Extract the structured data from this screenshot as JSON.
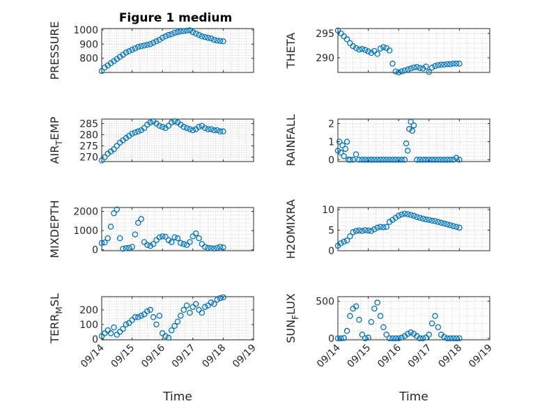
{
  "figure": {
    "title": "Figure 1 medium",
    "series_color": "#0072BD"
  },
  "chart_data": [
    {
      "type": "scatter",
      "name": "pressure",
      "ylabel": "PRESSURE",
      "ylim": [
        700,
        1010
      ],
      "yticks": [
        800,
        900,
        1000
      ],
      "xlabel": "",
      "xlim": [
        0,
        5
      ],
      "x": [
        0.0,
        0.1,
        0.2,
        0.3,
        0.4,
        0.5,
        0.6,
        0.7,
        0.8,
        0.9,
        1.0,
        1.1,
        1.2,
        1.3,
        1.4,
        1.5,
        1.6,
        1.7,
        1.8,
        1.9,
        2.0,
        2.1,
        2.2,
        2.3,
        2.4,
        2.5,
        2.6,
        2.7,
        2.8,
        2.9,
        3.0,
        3.1,
        3.2,
        3.3,
        3.4,
        3.5,
        3.6,
        3.7,
        3.8,
        3.9,
        4.0
      ],
      "y": [
        710,
        735,
        750,
        765,
        780,
        795,
        810,
        825,
        840,
        850,
        860,
        870,
        880,
        885,
        890,
        895,
        900,
        910,
        920,
        930,
        945,
        955,
        965,
        970,
        980,
        985,
        990,
        992,
        995,
        998,
        985,
        975,
        965,
        955,
        950,
        945,
        940,
        930,
        925,
        922,
        920
      ]
    },
    {
      "type": "scatter",
      "name": "theta",
      "ylabel": "THETA",
      "ylim": [
        287,
        296
      ],
      "yticks": [
        290,
        295
      ],
      "xlabel": "",
      "xlim": [
        0,
        5
      ],
      "x": [
        0.0,
        0.1,
        0.2,
        0.3,
        0.4,
        0.5,
        0.6,
        0.7,
        0.8,
        0.9,
        1.0,
        1.1,
        1.2,
        1.3,
        1.4,
        1.5,
        1.6,
        1.7,
        1.8,
        1.9,
        2.0,
        2.1,
        2.2,
        2.3,
        2.4,
        2.5,
        2.6,
        2.7,
        2.8,
        2.9,
        3.0,
        3.1,
        3.2,
        3.3,
        3.4,
        3.5,
        3.6,
        3.7,
        3.8,
        3.9,
        4.0
      ],
      "y": [
        295.6,
        295.0,
        294.4,
        293.8,
        293.0,
        292.4,
        292.0,
        291.7,
        291.8,
        291.6,
        291.3,
        291.0,
        291.4,
        290.8,
        291.9,
        292.2,
        292.0,
        291.5,
        288.8,
        287.2,
        287.0,
        287.2,
        287.4,
        287.6,
        287.8,
        288.0,
        288.1,
        287.9,
        287.8,
        288.2,
        287.1,
        288.0,
        288.3,
        288.5,
        288.6,
        288.6,
        288.7,
        288.7,
        288.8,
        288.8,
        288.8
      ]
    },
    {
      "type": "scatter",
      "name": "air-temp",
      "ylabel_main": "AIR",
      "ylabel_sub": "T",
      "ylabel_tail": "EMP",
      "ylim": [
        268,
        287
      ],
      "yticks": [
        270,
        275,
        280,
        285
      ],
      "xlabel": "",
      "xlim": [
        0,
        5
      ],
      "x": [
        0.0,
        0.1,
        0.2,
        0.3,
        0.4,
        0.5,
        0.6,
        0.7,
        0.8,
        0.9,
        1.0,
        1.1,
        1.2,
        1.3,
        1.4,
        1.5,
        1.6,
        1.7,
        1.8,
        1.9,
        2.0,
        2.1,
        2.2,
        2.3,
        2.4,
        2.5,
        2.6,
        2.7,
        2.8,
        2.9,
        3.0,
        3.1,
        3.2,
        3.3,
        3.4,
        3.5,
        3.6,
        3.7,
        3.8,
        3.9,
        4.0
      ],
      "y": [
        268.5,
        270.0,
        271.5,
        272.5,
        273.5,
        275.0,
        276.5,
        277.5,
        278.5,
        279.5,
        280.5,
        281.0,
        281.5,
        282.0,
        283.0,
        284.5,
        285.5,
        286.0,
        285.0,
        284.0,
        283.5,
        283.0,
        284.0,
        285.5,
        286.0,
        285.5,
        284.5,
        283.5,
        283.0,
        282.5,
        282.0,
        282.5,
        283.5,
        284.0,
        283.0,
        282.5,
        282.5,
        282.0,
        282.0,
        281.5,
        281.5
      ]
    },
    {
      "type": "scatter",
      "name": "rainfall",
      "ylabel": "RAINFALL",
      "ylim": [
        -0.1,
        2.25
      ],
      "yticks": [
        0,
        1,
        2
      ],
      "xlabel": "",
      "xlim": [
        0,
        5
      ],
      "x": [
        0.0,
        0.05,
        0.1,
        0.15,
        0.2,
        0.25,
        0.3,
        0.35,
        0.4,
        0.5,
        0.6,
        0.7,
        0.8,
        0.9,
        1.0,
        1.1,
        1.2,
        1.3,
        1.4,
        1.5,
        1.6,
        1.7,
        1.8,
        1.9,
        2.0,
        2.1,
        2.2,
        2.25,
        2.3,
        2.35,
        2.4,
        2.45,
        2.5,
        2.6,
        2.7,
        2.8,
        2.9,
        3.0,
        3.1,
        3.2,
        3.3,
        3.4,
        3.5,
        3.6,
        3.7,
        3.8,
        3.9,
        4.0
      ],
      "y": [
        0.5,
        1.0,
        0.4,
        0.8,
        0.2,
        0.6,
        1.0,
        0.0,
        0.0,
        0.0,
        0.3,
        0.0,
        0.0,
        0.0,
        0.0,
        0.0,
        0.0,
        0.0,
        0.0,
        0.0,
        0.0,
        0.0,
        0.0,
        0.0,
        0.0,
        0.0,
        0.0,
        0.9,
        0.5,
        1.7,
        2.1,
        1.6,
        1.9,
        0.0,
        0.0,
        0.0,
        0.0,
        0.0,
        0.0,
        0.0,
        0.0,
        0.0,
        0.0,
        0.0,
        0.0,
        0.0,
        0.1,
        0.0
      ]
    },
    {
      "type": "scatter",
      "name": "mixdepth",
      "ylabel": "MIXDEPTH",
      "ylim": [
        -50,
        2200
      ],
      "yticks": [
        0,
        1000,
        2000
      ],
      "xlabel": "",
      "xlim": [
        0,
        5
      ],
      "x": [
        0.0,
        0.1,
        0.2,
        0.3,
        0.4,
        0.5,
        0.6,
        0.7,
        0.8,
        0.9,
        1.0,
        1.1,
        1.2,
        1.3,
        1.4,
        1.5,
        1.6,
        1.7,
        1.8,
        1.9,
        2.0,
        2.1,
        2.2,
        2.3,
        2.4,
        2.5,
        2.6,
        2.7,
        2.8,
        2.9,
        3.0,
        3.1,
        3.2,
        3.3,
        3.4,
        3.5,
        3.6,
        3.7,
        3.8,
        3.9,
        4.0
      ],
      "y": [
        350,
        380,
        600,
        1200,
        1900,
        2100,
        600,
        50,
        80,
        100,
        150,
        800,
        1400,
        1600,
        400,
        250,
        200,
        300,
        500,
        650,
        700,
        680,
        500,
        400,
        650,
        600,
        350,
        300,
        250,
        400,
        700,
        850,
        600,
        300,
        150,
        100,
        80,
        60,
        100,
        150,
        120
      ]
    },
    {
      "type": "scatter",
      "name": "h2o-mixing-ratio",
      "ylabel": "H2OMIXRA",
      "ylim": [
        0,
        10.5
      ],
      "yticks": [
        0,
        5,
        10
      ],
      "xlabel": "",
      "xlim": [
        0,
        5
      ],
      "x": [
        0.0,
        0.1,
        0.2,
        0.3,
        0.4,
        0.5,
        0.6,
        0.7,
        0.8,
        0.9,
        1.0,
        1.1,
        1.2,
        1.3,
        1.4,
        1.5,
        1.6,
        1.7,
        1.8,
        1.9,
        2.0,
        2.1,
        2.2,
        2.3,
        2.4,
        2.5,
        2.6,
        2.7,
        2.8,
        2.9,
        3.0,
        3.1,
        3.2,
        3.3,
        3.4,
        3.5,
        3.6,
        3.7,
        3.8,
        3.9,
        4.0
      ],
      "y": [
        1.2,
        1.8,
        2.2,
        2.5,
        3.5,
        4.5,
        4.8,
        4.9,
        4.8,
        5.0,
        4.9,
        4.8,
        5.2,
        5.6,
        5.8,
        5.7,
        5.8,
        7.0,
        7.5,
        8.0,
        8.5,
        8.8,
        9.0,
        8.9,
        8.7,
        8.5,
        8.2,
        8.0,
        7.8,
        7.6,
        7.5,
        7.3,
        7.2,
        7.0,
        6.8,
        6.6,
        6.4,
        6.2,
        6.0,
        5.8,
        5.6
      ]
    },
    {
      "type": "scatter",
      "name": "terrain-msl",
      "ylabel_main": "TERR",
      "ylabel_sub": "M",
      "ylabel_tail": "SL",
      "ylim": [
        -5,
        290
      ],
      "yticks": [
        0,
        100,
        200
      ],
      "xlabel": "Time",
      "xlim": [
        0,
        5
      ],
      "xticks": [
        0,
        1,
        2,
        3,
        4,
        5
      ],
      "xticklabels": [
        "09/14",
        "09/15",
        "09/16",
        "09/17",
        "09/18",
        "09/19"
      ],
      "x": [
        0.0,
        0.1,
        0.2,
        0.3,
        0.4,
        0.5,
        0.6,
        0.7,
        0.8,
        0.9,
        1.0,
        1.1,
        1.2,
        1.3,
        1.4,
        1.5,
        1.6,
        1.7,
        1.8,
        1.9,
        2.0,
        2.1,
        2.2,
        2.3,
        2.4,
        2.5,
        2.6,
        2.7,
        2.8,
        2.9,
        3.0,
        3.1,
        3.2,
        3.3,
        3.4,
        3.5,
        3.6,
        3.7,
        3.8,
        3.9,
        4.0
      ],
      "y": [
        20,
        40,
        60,
        40,
        80,
        30,
        50,
        70,
        100,
        110,
        130,
        150,
        150,
        160,
        170,
        190,
        200,
        150,
        100,
        160,
        40,
        20,
        10,
        60,
        90,
        120,
        160,
        200,
        230,
        180,
        220,
        240,
        200,
        180,
        220,
        230,
        250,
        240,
        270,
        280,
        285
      ]
    },
    {
      "type": "scatter",
      "name": "sun-flux",
      "ylabel_main": "SUN",
      "ylabel_sub": "F",
      "ylabel_tail": "LUX",
      "ylim": [
        -20,
        560
      ],
      "yticks": [
        0,
        500
      ],
      "xlabel": "Time",
      "xlim": [
        0,
        5
      ],
      "xticks": [
        0,
        1,
        2,
        3,
        4,
        5
      ],
      "xticklabels": [
        "09/14",
        "09/15",
        "09/16",
        "09/17",
        "09/18",
        "09/19"
      ],
      "x": [
        0.0,
        0.1,
        0.2,
        0.3,
        0.4,
        0.5,
        0.6,
        0.7,
        0.8,
        0.9,
        1.0,
        1.1,
        1.2,
        1.3,
        1.4,
        1.5,
        1.6,
        1.7,
        1.8,
        1.9,
        2.0,
        2.1,
        2.2,
        2.3,
        2.4,
        2.5,
        2.6,
        2.7,
        2.8,
        2.9,
        3.0,
        3.1,
        3.2,
        3.3,
        3.4,
        3.5,
        3.6,
        3.7,
        3.8,
        3.9,
        4.0
      ],
      "y": [
        0,
        0,
        5,
        100,
        300,
        400,
        430,
        250,
        50,
        0,
        10,
        220,
        400,
        480,
        300,
        150,
        50,
        0,
        0,
        0,
        0,
        10,
        30,
        60,
        80,
        60,
        30,
        0,
        0,
        10,
        50,
        200,
        300,
        150,
        50,
        20,
        0,
        0,
        0,
        0,
        0
      ]
    }
  ]
}
